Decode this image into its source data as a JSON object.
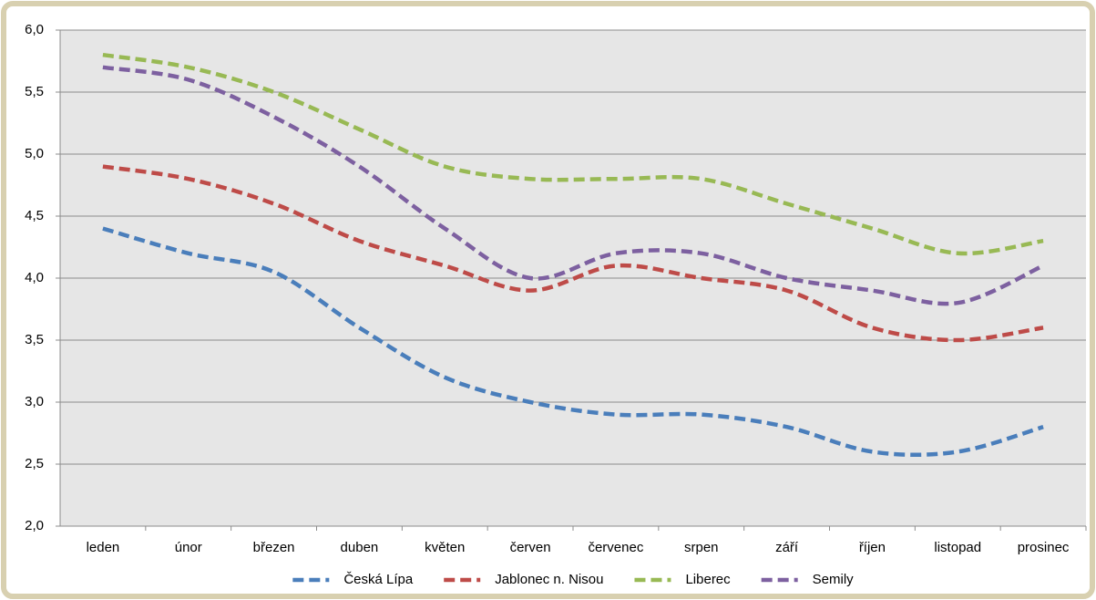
{
  "chart_data": {
    "type": "line",
    "categories": [
      "leden",
      "únor",
      "březen",
      "duben",
      "květen",
      "červen",
      "červenec",
      "srpen",
      "září",
      "říjen",
      "listopad",
      "prosinec"
    ],
    "series": [
      {
        "name": "Česká Lípa",
        "color": "#4a7ebb",
        "values": [
          4.4,
          4.2,
          4.05,
          3.6,
          3.2,
          3.0,
          2.9,
          2.9,
          2.8,
          2.6,
          2.6,
          2.8
        ]
      },
      {
        "name": "Jablonec n. Nisou",
        "color": "#be4b48",
        "values": [
          4.9,
          4.8,
          4.6,
          4.3,
          4.1,
          3.9,
          4.1,
          4.0,
          3.9,
          3.6,
          3.5,
          3.6
        ]
      },
      {
        "name": "Liberec",
        "color": "#98b954",
        "values": [
          5.8,
          5.7,
          5.5,
          5.2,
          4.9,
          4.8,
          4.8,
          4.8,
          4.6,
          4.4,
          4.2,
          4.3
        ]
      },
      {
        "name": "Semily",
        "color": "#7d60a0",
        "values": [
          5.7,
          5.6,
          5.3,
          4.9,
          4.4,
          4.0,
          4.2,
          4.2,
          4.0,
          3.9,
          3.8,
          4.1
        ]
      }
    ],
    "ylim": [
      2.0,
      6.0
    ],
    "yticks": [
      {
        "value": 2.0,
        "label": "2,0"
      },
      {
        "value": 2.5,
        "label": "2,5"
      },
      {
        "value": 3.0,
        "label": "3,0"
      },
      {
        "value": 3.5,
        "label": "3,5"
      },
      {
        "value": 4.0,
        "label": "4,0"
      },
      {
        "value": 4.5,
        "label": "4,5"
      },
      {
        "value": 5.0,
        "label": "5,0"
      },
      {
        "value": 5.5,
        "label": "5,5"
      },
      {
        "value": 6.0,
        "label": "6,0"
      }
    ],
    "grid": true,
    "legend": "bottom",
    "smooth": true,
    "dashed": true
  }
}
